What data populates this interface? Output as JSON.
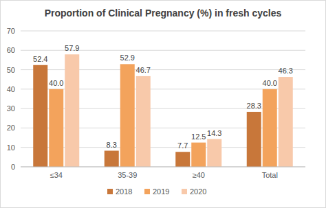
{
  "chart_data": {
    "type": "bar",
    "title": "Proportion of Clinical Pregnancy (%) in fresh cycles",
    "categories": [
      "≤34",
      "35-39",
      "≥40",
      "Total"
    ],
    "series": [
      {
        "name": "2018",
        "color": "#c8773a",
        "values": [
          52.4,
          8.3,
          7.7,
          28.3
        ]
      },
      {
        "name": "2019",
        "color": "#f3a35c",
        "values": [
          40,
          52.9,
          12.5,
          40
        ],
        "value_labels": [
          "40.0",
          "52.9",
          "12.5",
          "40.0"
        ]
      },
      {
        "name": "2020",
        "color": "#f8c9aa",
        "values": [
          57.9,
          46.7,
          14.3,
          46.3
        ]
      }
    ],
    "ylim": [
      0,
      70
    ],
    "yticks": [
      0,
      10,
      20,
      30,
      40,
      50,
      60,
      70
    ],
    "grid": true,
    "legend": "bottom",
    "data_labels": true
  }
}
